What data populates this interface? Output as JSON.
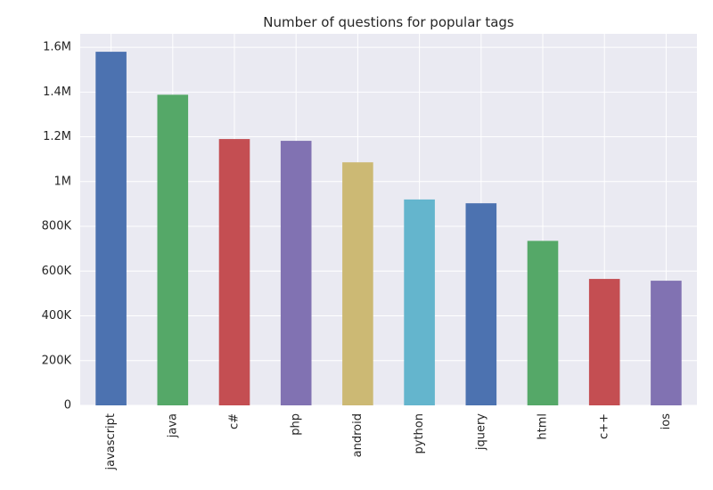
{
  "chart_data": {
    "type": "bar",
    "title": "Number of questions for popular tags",
    "xlabel": "",
    "ylabel": "",
    "categories": [
      "javascript",
      "java",
      "c#",
      "php",
      "android",
      "python",
      "jquery",
      "html",
      "c++",
      "ios"
    ],
    "values": [
      1580000,
      1388000,
      1190000,
      1182000,
      1086000,
      920000,
      903000,
      735000,
      565000,
      557000
    ],
    "colors": [
      "#4c72b0",
      "#55a868",
      "#c44e52",
      "#8172b2",
      "#ccb974",
      "#64b5cd",
      "#4c72b0",
      "#55a868",
      "#c44e52",
      "#8172b2"
    ],
    "ylim": [
      0,
      1660000
    ],
    "yticks": [
      0,
      200000,
      400000,
      600000,
      800000,
      1000000,
      1200000,
      1400000,
      1600000
    ],
    "ytick_labels": [
      "0",
      "200K",
      "400K",
      "600K",
      "800K",
      "1M",
      "1.2M",
      "1.4M",
      "1.6M"
    ],
    "grid": true,
    "legend": "none",
    "background": "#eaeaf2",
    "grid_color": "#ffffff"
  }
}
